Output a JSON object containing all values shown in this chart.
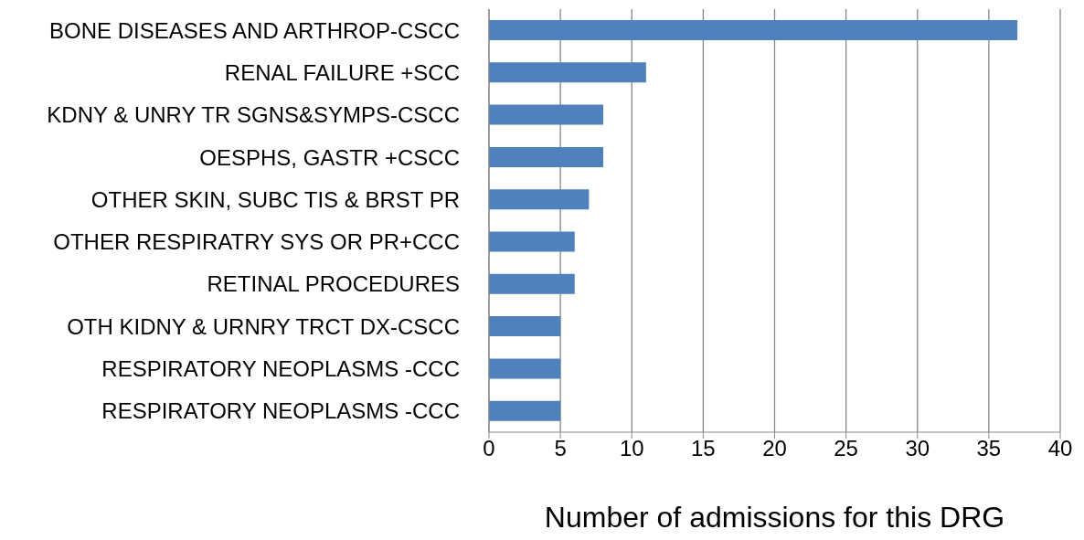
{
  "chart_data": {
    "type": "bar",
    "orientation": "horizontal",
    "xlabel": "Number of admissions for this DRG",
    "categories": [
      "BONE DISEASES AND ARTHROP-CSCC",
      "RENAL FAILURE +SCC",
      "KDNY & UNRY TR SGNS&SYMPS-CSCC",
      "OESPHS, GASTR +CSCC",
      "OTHER SKIN, SUBC TIS & BRST PR",
      "OTHER RESPIRATRY SYS OR PR+CCC",
      "RETINAL PROCEDURES",
      "OTH KIDNY & URNRY TRCT DX-CSCC",
      "RESPIRATORY NEOPLASMS -CCC",
      "RESPIRATORY NEOPLASMS -CCC"
    ],
    "values": [
      37,
      11,
      8,
      8,
      7,
      6,
      6,
      5,
      5,
      5
    ],
    "color": "#4f81bd",
    "xlim": [
      0,
      40
    ],
    "xticks": [
      0,
      5,
      10,
      15,
      20,
      25,
      30,
      35,
      40
    ],
    "grid": "x",
    "legend": false
  }
}
